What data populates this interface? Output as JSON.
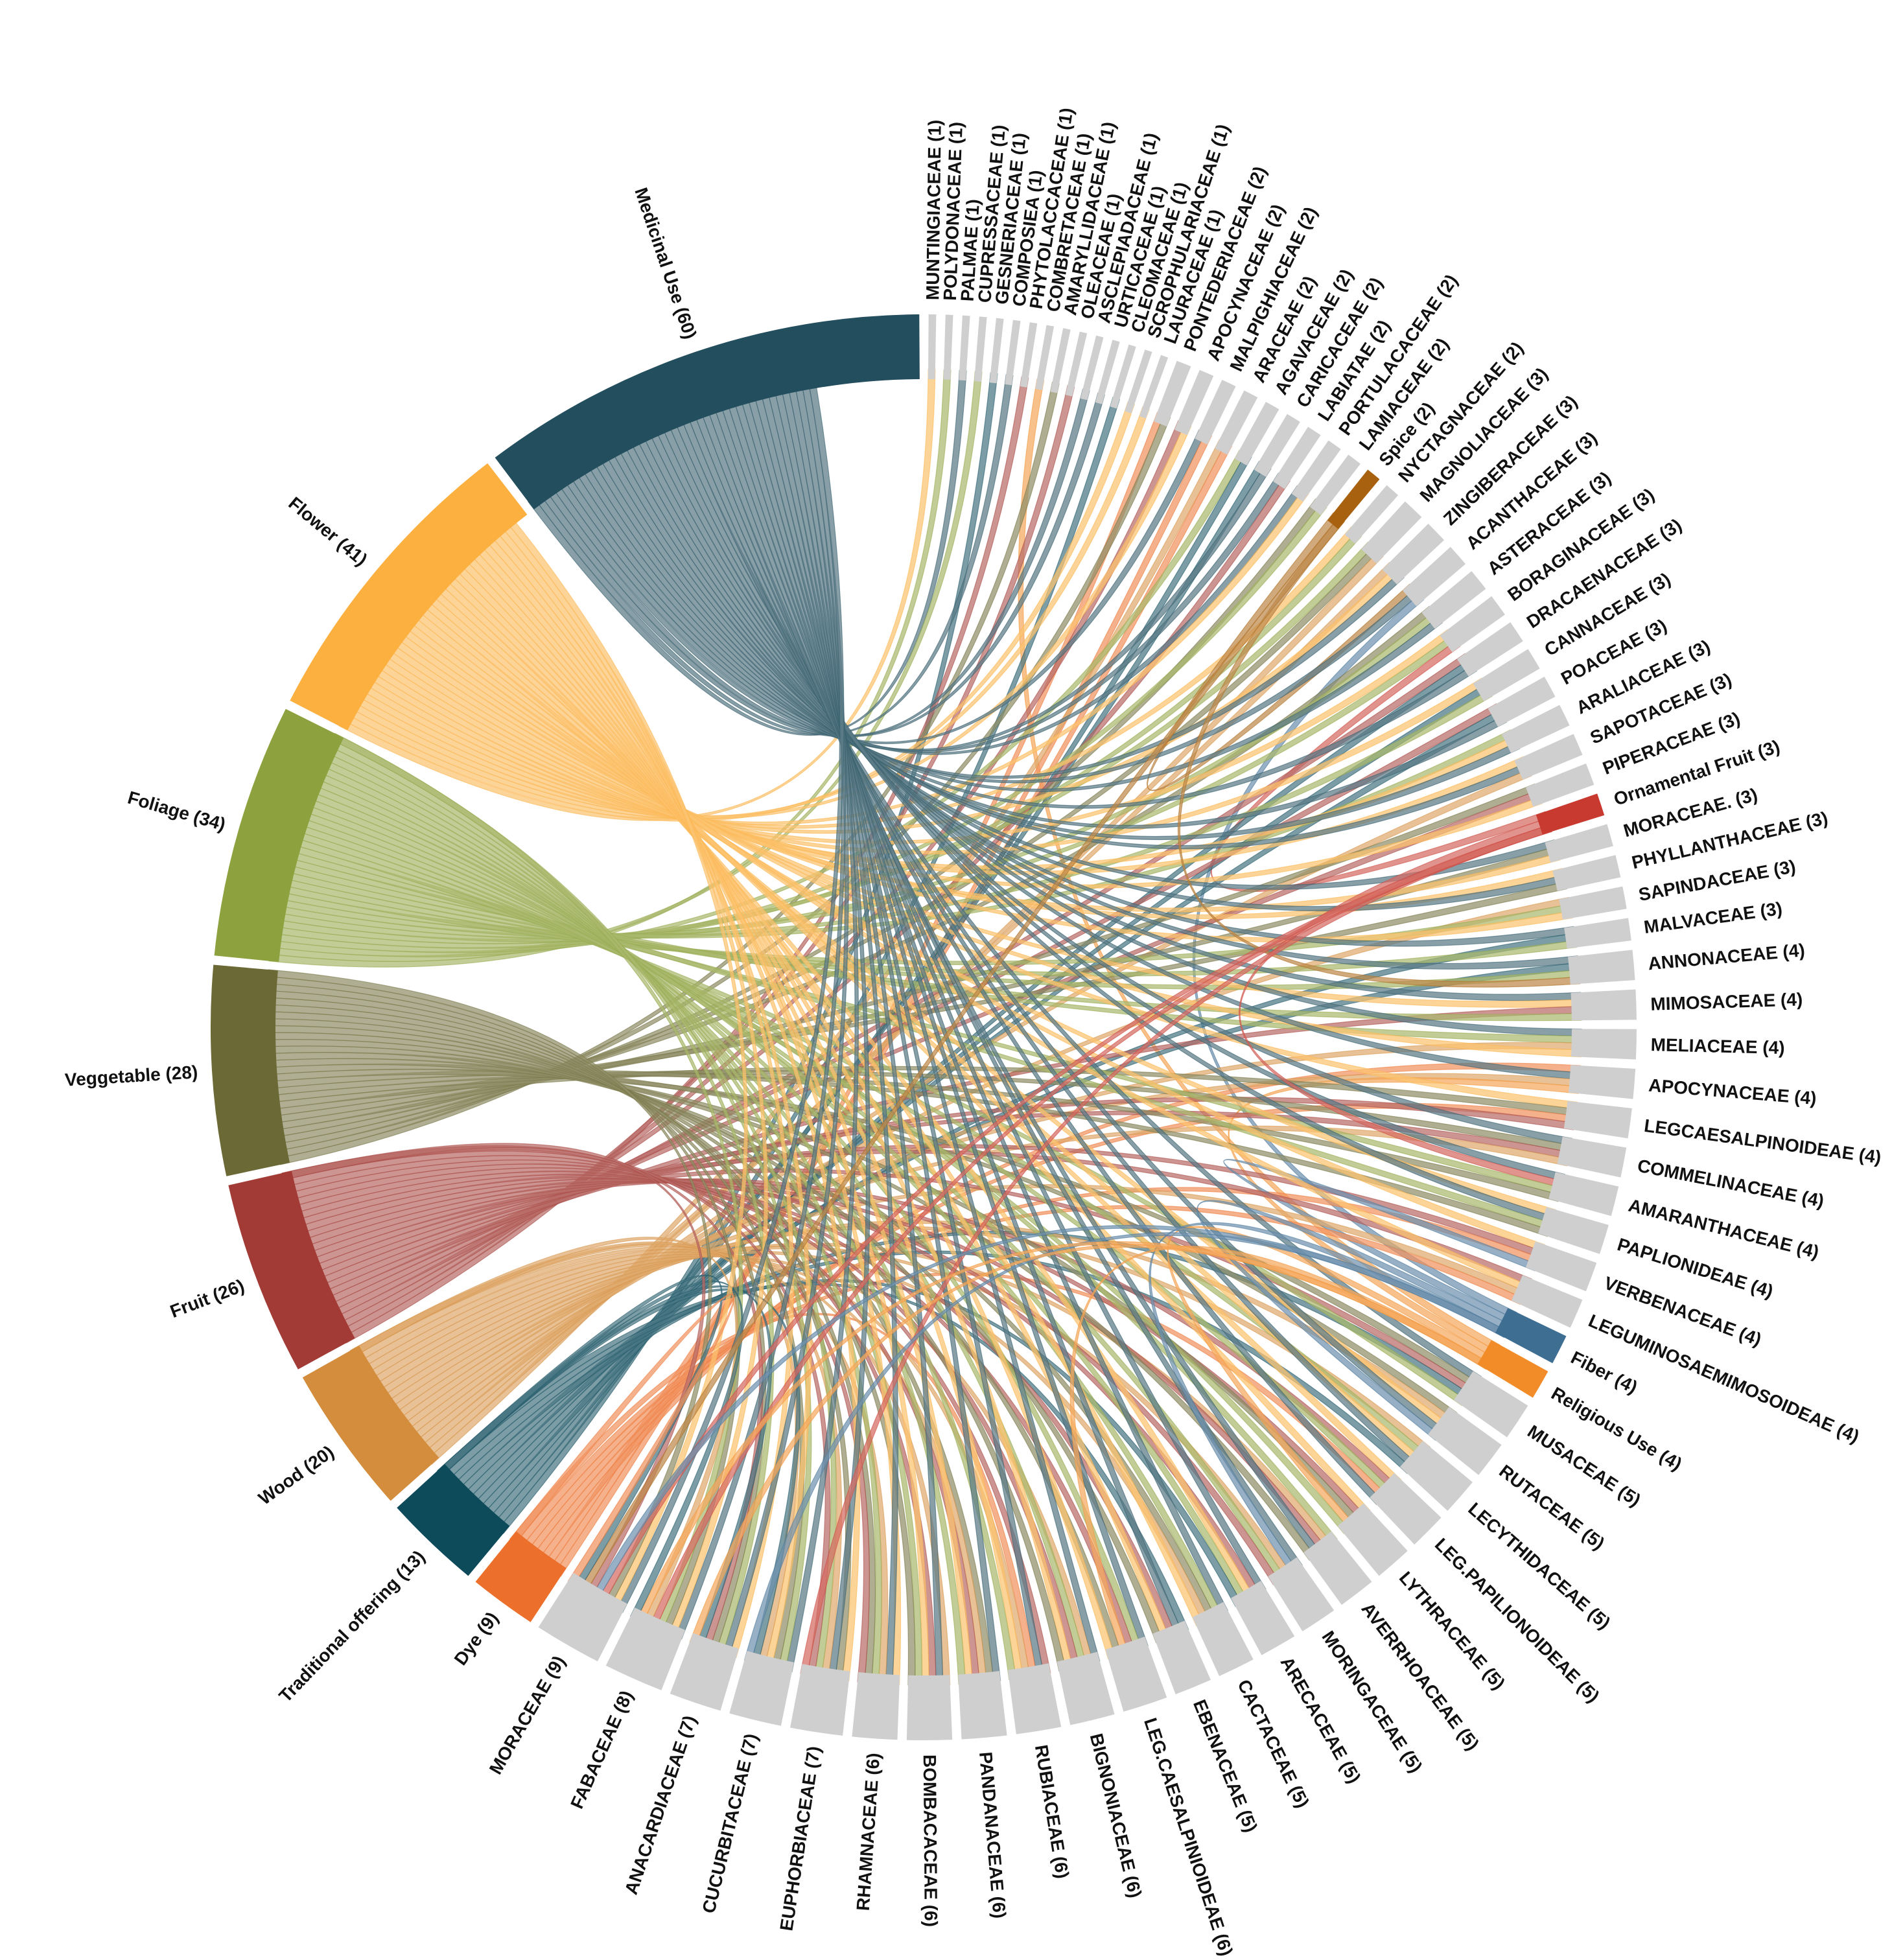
{
  "chart_data": {
    "type": "chord",
    "title": "",
    "uses": [
      {
        "label": "Medicinal Use (60)",
        "name": "Medicinal Use",
        "value": 60,
        "color": "#234e5e"
      },
      {
        "label": "Flower (41)",
        "name": "Flower",
        "value": 41,
        "color": "#fbb040"
      },
      {
        "label": "Foliage (34)",
        "name": "Foliage",
        "value": 34,
        "color": "#8da23e"
      },
      {
        "label": "Veggetable (28)",
        "name": "Veggetable",
        "value": 28,
        "color": "#6b6935"
      },
      {
        "label": "Fruit (26)",
        "name": "Fruit",
        "value": 26,
        "color": "#a23b35"
      },
      {
        "label": "Wood (20)",
        "name": "Wood",
        "value": 20,
        "color": "#d48d3c"
      },
      {
        "label": "Traditional offering (13)",
        "name": "Traditional offering",
        "value": 13,
        "color": "#0d4a5a"
      },
      {
        "label": "Dye (9)",
        "name": "Dye",
        "value": 9,
        "color": "#ec6f2b"
      },
      {
        "label": "Religious Use (4)",
        "name": "Religious Use",
        "value": 4,
        "color": "#f28c28"
      },
      {
        "label": "Fiber (4)",
        "name": "Fiber",
        "value": 4,
        "color": "#3f6e93"
      },
      {
        "label": "Ornamental Fruit (3)",
        "name": "Ornamental Fruit",
        "value": 3,
        "color": "#c8392f"
      },
      {
        "label": "Spice (2)",
        "name": "Spice",
        "value": 2,
        "color": "#a8620f"
      }
    ],
    "families": [
      {
        "label": "MORACEAE (9)",
        "value": 9
      },
      {
        "label": "FABACEAE (8)",
        "value": 8
      },
      {
        "label": "ANACARDIACEAE (7)",
        "value": 7
      },
      {
        "label": "CUCURBITACEAE (7)",
        "value": 7
      },
      {
        "label": "EUPHORBIACEAE (7)",
        "value": 7
      },
      {
        "label": "RHAMNACEAE (6)",
        "value": 6
      },
      {
        "label": "BOMBACACEAE (6)",
        "value": 6
      },
      {
        "label": "PANDANACEAE (6)",
        "value": 6
      },
      {
        "label": "RUBIACEAE (6)",
        "value": 6
      },
      {
        "label": "BIGNONIACEAE (6)",
        "value": 6
      },
      {
        "label": "LEG.CAESALPINIOIDEAE (6)",
        "value": 6
      },
      {
        "label": "EBENACEAE (5)",
        "value": 5
      },
      {
        "label": "CACTACEAE  (5)",
        "value": 5
      },
      {
        "label": "ARECACEAE (5)",
        "value": 5
      },
      {
        "label": "MORINGACEAE (5)",
        "value": 5
      },
      {
        "label": "AVERRHOACEAE (5)",
        "value": 5
      },
      {
        "label": "LYTHRACEAE (5)",
        "value": 5
      },
      {
        "label": "LEG.PAPILIONOIDEAE (5)",
        "value": 5
      },
      {
        "label": "LECYTHIDACEAE (5)",
        "value": 5
      },
      {
        "label": "RUTACEAE (5)",
        "value": 5
      },
      {
        "label": "MUSACEAE (5)",
        "value": 5
      },
      {
        "label": "LEGUMINOSAEMIMOSOIDEAE (4)",
        "value": 4
      },
      {
        "label": "VERBENACEAE (4)",
        "value": 4
      },
      {
        "label": "PAPLIONIDEAE (4)",
        "value": 4
      },
      {
        "label": "AMARANTHACEAE (4)",
        "value": 4
      },
      {
        "label": "COMMELINACEAE (4)",
        "value": 4
      },
      {
        "label": "LEGCAESALPINOIDEAE (4)",
        "value": 4
      },
      {
        "label": "APOCYNACEAE (4)",
        "value": 4
      },
      {
        "label": "MELIACEAE (4)",
        "value": 4
      },
      {
        "label": "MIMOSACEAE (4)",
        "value": 4
      },
      {
        "label": "ANNONACEAE (4)",
        "value": 4
      },
      {
        "label": "MALVACEAE (3)",
        "value": 3
      },
      {
        "label": "SAPINDACEAE (3)",
        "value": 3
      },
      {
        "label": "PHYLLANTHACEAE (3)",
        "value": 3
      },
      {
        "label": "MORACEAE.  (3)",
        "value": 3
      },
      {
        "label": "PIPERACEAE (3)",
        "value": 3
      },
      {
        "label": "SAPOTACEAE (3)",
        "value": 3
      },
      {
        "label": "ARALIACEAE (3)",
        "value": 3
      },
      {
        "label": "POACEAE (3)",
        "value": 3
      },
      {
        "label": "CANNACEAE (3)",
        "value": 3
      },
      {
        "label": "DRACAENACEAE (3)",
        "value": 3
      },
      {
        "label": "BORAGINACEAE (3)",
        "value": 3
      },
      {
        "label": "ASTERACEAE (3)",
        "value": 3
      },
      {
        "label": "ACANTHACEAE (3)",
        "value": 3
      },
      {
        "label": "ZINGIBERACEAE (3)",
        "value": 3
      },
      {
        "label": "MAGNOLIACEAE (3)",
        "value": 3
      },
      {
        "label": "NYCTAGNACEAE (2)",
        "value": 2
      },
      {
        "label": "LAMIACEAE (2)",
        "value": 2
      },
      {
        "label": "PORTULACACEAE (2)",
        "value": 2
      },
      {
        "label": "LABIATAE (2)",
        "value": 2
      },
      {
        "label": "CARICACEAE (2)",
        "value": 2
      },
      {
        "label": "AGAVACEAE (2)",
        "value": 2
      },
      {
        "label": "ARACEAE (2)",
        "value": 2
      },
      {
        "label": "MALPIGHIACEAE (2)",
        "value": 2
      },
      {
        "label": "APOCYNACEAE (2)",
        "value": 2
      },
      {
        "label": "PONTEDERIACEAE (2)",
        "value": 2
      },
      {
        "label": "LAURACEAE (1)",
        "value": 1
      },
      {
        "label": "SCROPHULARIACEAE (1)",
        "value": 1
      },
      {
        "label": "CLEOMACEAE (1)",
        "value": 1
      },
      {
        "label": "URTICACEAE (1)",
        "value": 1
      },
      {
        "label": "ASCLEPIADACEAE (1)",
        "value": 1
      },
      {
        "label": "OLEACEAE (1)",
        "value": 1
      },
      {
        "label": "AMARYLLIDACEAE (1)",
        "value": 1
      },
      {
        "label": "COMBRETACEAE (1)",
        "value": 1
      },
      {
        "label": "PHYTOLACCACEAE (1)",
        "value": 1
      },
      {
        "label": "COMPOSIEA (1)",
        "value": 1
      },
      {
        "label": "GESNERIACEAE (1)",
        "value": 1
      },
      {
        "label": "CUPRESSACEAE (1)",
        "value": 1
      },
      {
        "label": "PALMAE (1)",
        "value": 1
      },
      {
        "label": "POLYDONACEAE (1)",
        "value": 1
      },
      {
        "label": "MUNTINGIACEAE (1)",
        "value": 1
      }
    ],
    "family_color": "#cfcfcf"
  }
}
